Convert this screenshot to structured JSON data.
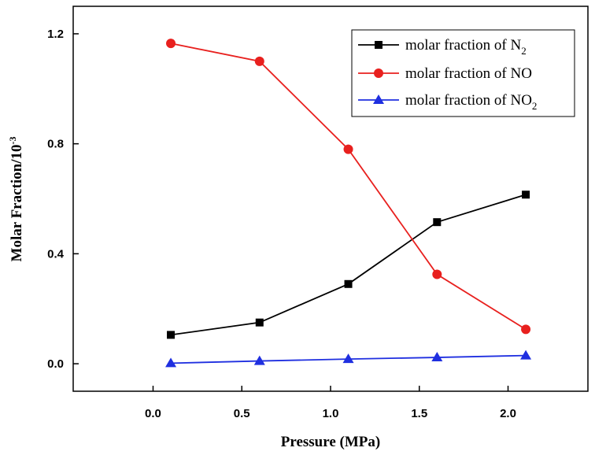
{
  "chart_data": {
    "type": "line",
    "title": "",
    "xlabel": "Pressure (MPa)",
    "ylabel_main": "Molar Fraction/10",
    "ylabel_sup": "-3",
    "xlim": [
      -0.45,
      2.45
    ],
    "ylim": [
      -0.1,
      1.3
    ],
    "xticks": [
      0.0,
      0.5,
      1.0,
      1.5,
      2.0
    ],
    "xtick_labels": [
      "0.0",
      "0.5",
      "1.0",
      "1.5",
      "2.0"
    ],
    "yticks": [
      0.0,
      0.4,
      0.8,
      1.2
    ],
    "ytick_labels": [
      "0.0",
      "0.4",
      "0.8",
      "1.2"
    ],
    "grid": false,
    "legend_position": "top-right",
    "series": [
      {
        "name": "molar fraction of N2",
        "legend_main": "molar fraction of N",
        "legend_sub": "2",
        "color": "#000000",
        "marker": "square",
        "x": [
          0.1,
          0.6,
          1.1,
          1.6,
          2.1
        ],
        "y": [
          0.105,
          0.15,
          0.29,
          0.515,
          0.615
        ]
      },
      {
        "name": "molar fraction of NO",
        "legend_main": "molar fraction of NO",
        "legend_sub": "",
        "color": "#e8201e",
        "marker": "circle",
        "x": [
          0.1,
          0.6,
          1.1,
          1.6,
          2.1
        ],
        "y": [
          1.165,
          1.1,
          0.78,
          0.325,
          0.125
        ]
      },
      {
        "name": "molar fraction of NO2",
        "legend_main": "molar fraction of NO",
        "legend_sub": "2",
        "color": "#1f2fe0",
        "marker": "triangle",
        "x": [
          0.1,
          0.6,
          1.1,
          1.6,
          2.1
        ],
        "y": [
          0.002,
          0.01,
          0.017,
          0.023,
          0.03
        ]
      }
    ]
  }
}
